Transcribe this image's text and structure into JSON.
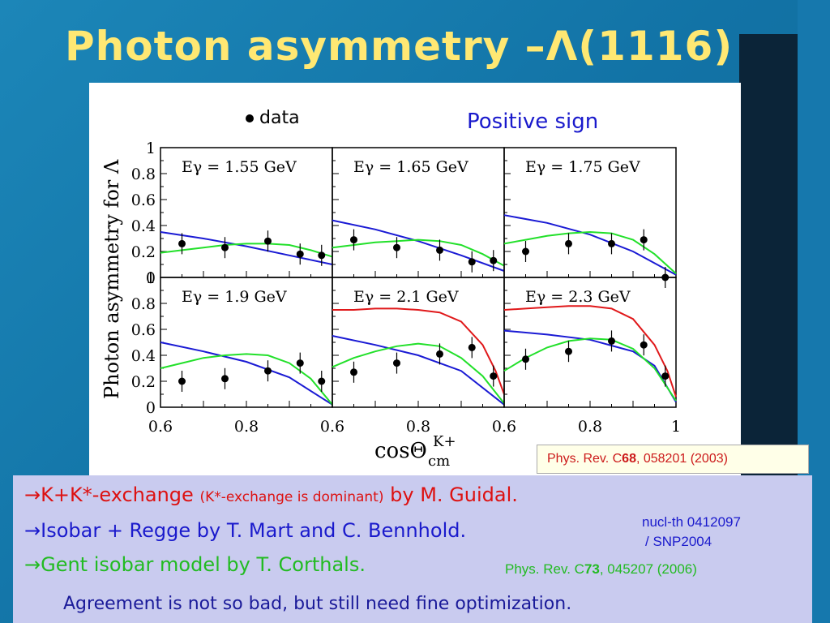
{
  "title": "Photon asymmetry –Λ(1116)",
  "figure": {
    "legend_marker_label": "data",
    "sign_note": "Positive sign",
    "ylabel": "Photon asymmetry for Λ",
    "xlabel_main": "cosΘ",
    "xlabel_sup": "K+",
    "xlabel_sub": "cm"
  },
  "chart_data": {
    "type": "scatter",
    "panels": [
      {
        "label": "Eγ = 1.55 GeV",
        "data_x": [
          0.65,
          0.75,
          0.85,
          0.925,
          0.975
        ],
        "data_y": [
          0.26,
          0.23,
          0.28,
          0.18,
          0.17
        ],
        "blue": [
          [
            0.6,
            0.35
          ],
          [
            0.7,
            0.3
          ],
          [
            0.8,
            0.24
          ],
          [
            0.9,
            0.17
          ],
          [
            1.0,
            0.1
          ]
        ],
        "green": [
          [
            0.6,
            0.19
          ],
          [
            0.65,
            0.21
          ],
          [
            0.7,
            0.23
          ],
          [
            0.75,
            0.25
          ],
          [
            0.8,
            0.26
          ],
          [
            0.85,
            0.26
          ],
          [
            0.9,
            0.25
          ],
          [
            0.95,
            0.21
          ],
          [
            1.0,
            0.16
          ]
        ]
      },
      {
        "label": "Eγ = 1.65 GeV",
        "data_x": [
          0.65,
          0.75,
          0.85,
          0.925,
          0.975
        ],
        "data_y": [
          0.29,
          0.23,
          0.21,
          0.12,
          0.13
        ],
        "blue": [
          [
            0.6,
            0.44
          ],
          [
            0.7,
            0.37
          ],
          [
            0.8,
            0.28
          ],
          [
            0.9,
            0.17
          ],
          [
            1.0,
            0.05
          ]
        ],
        "green": [
          [
            0.6,
            0.23
          ],
          [
            0.65,
            0.25
          ],
          [
            0.7,
            0.27
          ],
          [
            0.75,
            0.28
          ],
          [
            0.8,
            0.29
          ],
          [
            0.85,
            0.28
          ],
          [
            0.9,
            0.25
          ],
          [
            0.95,
            0.18
          ],
          [
            1.0,
            0.09
          ]
        ]
      },
      {
        "label": "Eγ = 1.75 GeV",
        "data_x": [
          0.65,
          0.75,
          0.85,
          0.925,
          0.975
        ],
        "data_y": [
          0.2,
          0.26,
          0.26,
          0.29,
          0.0
        ],
        "blue": [
          [
            0.6,
            0.48
          ],
          [
            0.7,
            0.42
          ],
          [
            0.8,
            0.33
          ],
          [
            0.9,
            0.2
          ],
          [
            1.0,
            0.02
          ]
        ],
        "green": [
          [
            0.6,
            0.26
          ],
          [
            0.65,
            0.29
          ],
          [
            0.7,
            0.32
          ],
          [
            0.75,
            0.34
          ],
          [
            0.8,
            0.35
          ],
          [
            0.85,
            0.34
          ],
          [
            0.9,
            0.29
          ],
          [
            0.95,
            0.18
          ],
          [
            1.0,
            0.03
          ]
        ]
      },
      {
        "label": "Eγ = 1.9 GeV",
        "data_x": [
          0.65,
          0.75,
          0.85,
          0.925,
          0.975
        ],
        "data_y": [
          0.2,
          0.22,
          0.28,
          0.34,
          0.2
        ],
        "blue": [
          [
            0.6,
            0.5
          ],
          [
            0.7,
            0.43
          ],
          [
            0.8,
            0.35
          ],
          [
            0.9,
            0.23
          ],
          [
            1.0,
            0.02
          ]
        ],
        "green": [
          [
            0.6,
            0.3
          ],
          [
            0.65,
            0.34
          ],
          [
            0.7,
            0.38
          ],
          [
            0.75,
            0.4
          ],
          [
            0.8,
            0.41
          ],
          [
            0.85,
            0.4
          ],
          [
            0.9,
            0.34
          ],
          [
            0.95,
            0.22
          ],
          [
            1.0,
            0.02
          ]
        ]
      },
      {
        "label": "Eγ = 2.1 GeV",
        "data_x": [
          0.65,
          0.75,
          0.85,
          0.925,
          0.975
        ],
        "data_y": [
          0.27,
          0.34,
          0.41,
          0.46,
          0.24
        ],
        "blue": [
          [
            0.6,
            0.55
          ],
          [
            0.7,
            0.48
          ],
          [
            0.8,
            0.4
          ],
          [
            0.9,
            0.28
          ],
          [
            1.0,
            0.02
          ]
        ],
        "green": [
          [
            0.6,
            0.31
          ],
          [
            0.65,
            0.38
          ],
          [
            0.7,
            0.43
          ],
          [
            0.75,
            0.47
          ],
          [
            0.8,
            0.49
          ],
          [
            0.85,
            0.47
          ],
          [
            0.9,
            0.38
          ],
          [
            0.95,
            0.24
          ],
          [
            1.0,
            0.03
          ]
        ],
        "red": [
          [
            0.6,
            0.75
          ],
          [
            0.65,
            0.75
          ],
          [
            0.7,
            0.76
          ],
          [
            0.75,
            0.76
          ],
          [
            0.8,
            0.75
          ],
          [
            0.85,
            0.73
          ],
          [
            0.9,
            0.66
          ],
          [
            0.95,
            0.48
          ],
          [
            0.98,
            0.28
          ],
          [
            1.0,
            0.1
          ]
        ]
      },
      {
        "label": "Eγ = 2.3 GeV",
        "data_x": [
          0.65,
          0.75,
          0.85,
          0.925,
          0.975
        ],
        "data_y": [
          0.37,
          0.43,
          0.51,
          0.48,
          0.24
        ],
        "blue": [
          [
            0.6,
            0.59
          ],
          [
            0.7,
            0.56
          ],
          [
            0.8,
            0.52
          ],
          [
            0.9,
            0.43
          ],
          [
            0.95,
            0.32
          ],
          [
            1.0,
            0.04
          ]
        ],
        "green": [
          [
            0.6,
            0.28
          ],
          [
            0.65,
            0.38
          ],
          [
            0.7,
            0.46
          ],
          [
            0.75,
            0.51
          ],
          [
            0.8,
            0.53
          ],
          [
            0.85,
            0.52
          ],
          [
            0.9,
            0.45
          ],
          [
            0.95,
            0.3
          ],
          [
            1.0,
            0.05
          ]
        ],
        "red": [
          [
            0.6,
            0.75
          ],
          [
            0.65,
            0.76
          ],
          [
            0.7,
            0.77
          ],
          [
            0.75,
            0.78
          ],
          [
            0.8,
            0.78
          ],
          [
            0.85,
            0.76
          ],
          [
            0.9,
            0.68
          ],
          [
            0.95,
            0.48
          ],
          [
            0.98,
            0.28
          ],
          [
            1.0,
            0.08
          ]
        ]
      }
    ],
    "xlim": [
      0.6,
      1.0
    ],
    "ylim": [
      0,
      1
    ],
    "xticks": [
      "0.6",
      "0.8",
      "0.6",
      "0.8",
      "0.6",
      "0.8",
      "1"
    ],
    "yticks": [
      "0",
      "0.2",
      "0.4",
      "0.6",
      "0.8",
      "1"
    ],
    "series_colors": {
      "blue": "#1a1ad4",
      "green": "#22e02a",
      "red": "#e0181a",
      "data": "#000000"
    }
  },
  "reference_box": {
    "prefix": "Phys. Rev. C",
    "volume": "68",
    "rest": ", 058201 (2003)"
  },
  "notes": {
    "line1_main": "→K+K*-exchange",
    "line1_small": "(K*-exchange is dominant)",
    "line1_end": "by M. Guidal.",
    "line2": "→Isobar + Regge by T. Mart and C. Bennhold.",
    "ref2_a": "nucl-th 0412097",
    "ref2_b": "/ SNP2004",
    "line3": "→Gent isobar model by T. Corthals.",
    "ref3_prefix": "Phys. Rev. C",
    "ref3_volume": "73",
    "ref3_rest": ", 045207 (2006)",
    "conclusion": "Agreement is not so bad, but still need fine optimization."
  },
  "colors": {
    "title": "#ffe873",
    "note_red": "#dd1111",
    "note_blue": "#1a1acc",
    "note_green": "#22bb22",
    "ref_red": "#cc1a1a"
  }
}
